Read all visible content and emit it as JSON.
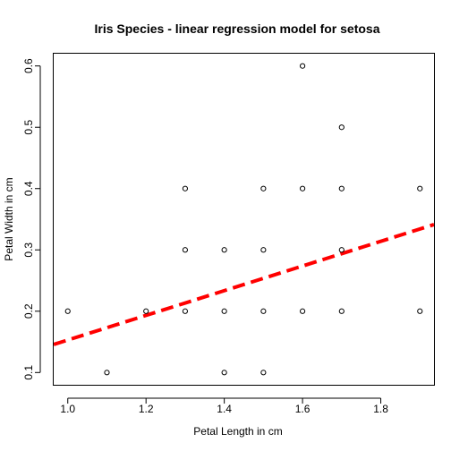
{
  "chart_data": {
    "type": "scatter",
    "title": "Iris Species - linear regression model for setosa",
    "xlabel": "Petal Length in cm",
    "ylabel": "Petal Width in cm",
    "xlim": [
      0.964,
      1.936
    ],
    "ylim": [
      0.08,
      0.62
    ],
    "x_ticks": [
      1.0,
      1.2,
      1.4,
      1.6,
      1.8
    ],
    "x_tick_labels": [
      "1.0",
      "1.2",
      "1.4",
      "1.6",
      "1.8"
    ],
    "y_ticks": [
      0.1,
      0.2,
      0.3,
      0.4,
      0.5,
      0.6
    ],
    "y_tick_labels": [
      "0.1",
      "0.2",
      "0.3",
      "0.4",
      "0.5",
      "0.6"
    ],
    "grid": false,
    "points": [
      [
        1.0,
        0.2
      ],
      [
        1.1,
        0.1
      ],
      [
        1.2,
        0.2
      ],
      [
        1.3,
        0.2
      ],
      [
        1.3,
        0.3
      ],
      [
        1.3,
        0.4
      ],
      [
        1.4,
        0.1
      ],
      [
        1.4,
        0.2
      ],
      [
        1.4,
        0.3
      ],
      [
        1.5,
        0.1
      ],
      [
        1.5,
        0.2
      ],
      [
        1.5,
        0.3
      ],
      [
        1.5,
        0.4
      ],
      [
        1.6,
        0.2
      ],
      [
        1.6,
        0.4
      ],
      [
        1.6,
        0.6
      ],
      [
        1.7,
        0.2
      ],
      [
        1.7,
        0.3
      ],
      [
        1.7,
        0.4
      ],
      [
        1.7,
        0.5
      ],
      [
        1.9,
        0.2
      ],
      [
        1.9,
        0.4
      ]
    ],
    "regression": {
      "intercept": -0.0482,
      "slope": 0.2012,
      "color": "#ff0000",
      "style": "dashed"
    }
  }
}
